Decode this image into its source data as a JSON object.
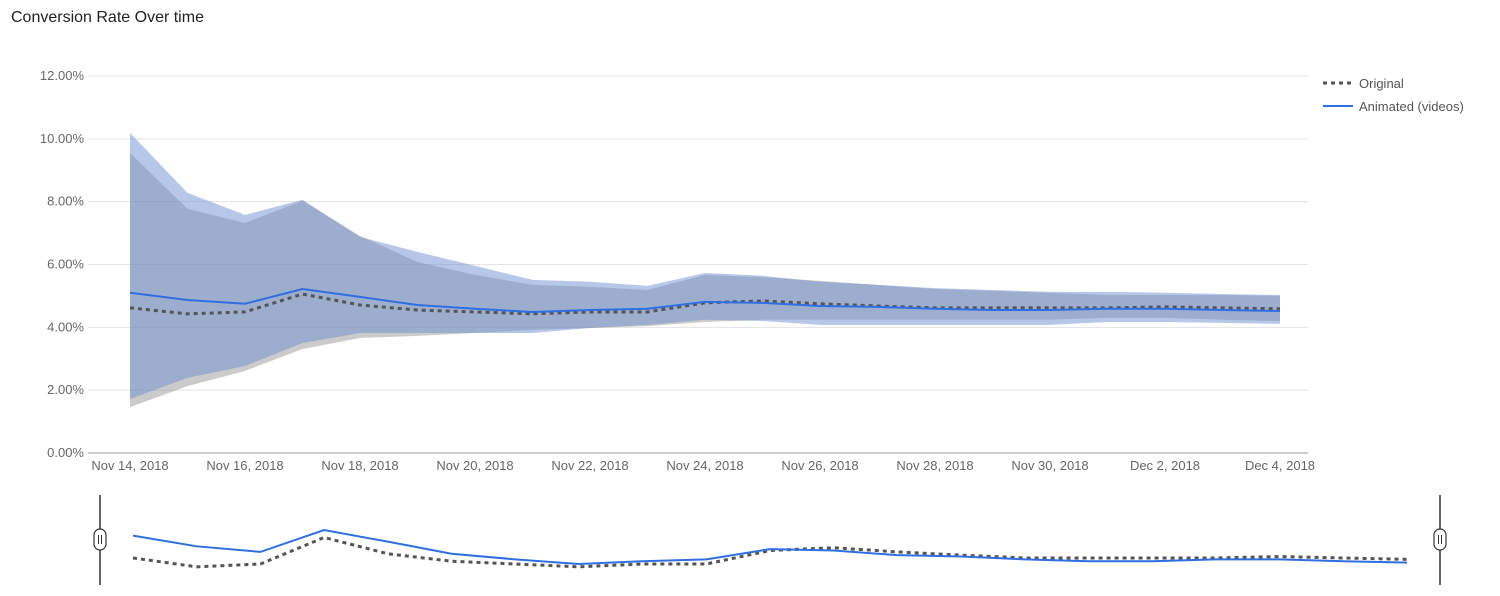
{
  "chart_data": {
    "type": "line",
    "title": "Conversion Rate Over time",
    "xlabel": "",
    "ylabel": "",
    "ylim": [
      0,
      12
    ],
    "y_ticks": [
      "0.00%",
      "2.00%",
      "4.00%",
      "6.00%",
      "8.00%",
      "10.00%",
      "12.00%"
    ],
    "x_tick_labels": [
      "Nov 14, 2018",
      "Nov 16, 2018",
      "Nov 18, 2018",
      "Nov 20, 2018",
      "Nov 22, 2018",
      "Nov 24, 2018",
      "Nov 26, 2018",
      "Nov 28, 2018",
      "Nov 30, 2018",
      "Dec 2, 2018",
      "Dec 4, 2018"
    ],
    "x": [
      "Nov 14",
      "Nov 15",
      "Nov 16",
      "Nov 17",
      "Nov 18",
      "Nov 19",
      "Nov 20",
      "Nov 21",
      "Nov 22",
      "Nov 23",
      "Nov 24",
      "Nov 25",
      "Nov 26",
      "Nov 27",
      "Nov 28",
      "Nov 29",
      "Nov 30",
      "Dec 1",
      "Dec 2",
      "Dec 3",
      "Dec 4"
    ],
    "grid": true,
    "legend_position": "top-right",
    "series": [
      {
        "name": "Original",
        "style": "dotted",
        "color": "#555555",
        "band_color": "#8c8c8c",
        "values": [
          4.62,
          4.43,
          4.49,
          5.06,
          4.71,
          4.55,
          4.49,
          4.43,
          4.49,
          4.49,
          4.78,
          4.84,
          4.75,
          4.68,
          4.62,
          4.62,
          4.62,
          4.62,
          4.65,
          4.62,
          4.59
        ],
        "upper": [
          9.55,
          7.77,
          7.32,
          8.03,
          6.91,
          6.08,
          5.67,
          5.35,
          5.29,
          5.19,
          5.67,
          5.6,
          5.48,
          5.35,
          5.22,
          5.16,
          5.1,
          5.03,
          5.03,
          5.03,
          5.0
        ],
        "lower": [
          1.46,
          2.13,
          2.61,
          3.31,
          3.66,
          3.73,
          3.82,
          3.92,
          3.98,
          4.04,
          4.17,
          4.24,
          4.24,
          4.24,
          4.24,
          4.24,
          4.24,
          4.3,
          4.3,
          4.24,
          4.2
        ]
      },
      {
        "name": "Animated (videos)",
        "style": "solid",
        "color": "#2f6fe0",
        "band_color": "#6f8fcf",
        "values": [
          5.1,
          4.87,
          4.75,
          5.22,
          4.97,
          4.71,
          4.59,
          4.49,
          4.55,
          4.59,
          4.81,
          4.78,
          4.68,
          4.65,
          4.59,
          4.55,
          4.55,
          4.59,
          4.59,
          4.55,
          4.52
        ],
        "upper": [
          10.19,
          8.28,
          7.58,
          8.06,
          6.88,
          6.4,
          5.96,
          5.51,
          5.45,
          5.32,
          5.73,
          5.64,
          5.45,
          5.35,
          5.25,
          5.19,
          5.13,
          5.13,
          5.1,
          5.06,
          5.03
        ],
        "lower": [
          1.72,
          2.39,
          2.77,
          3.5,
          3.82,
          3.82,
          3.82,
          3.82,
          3.98,
          4.08,
          4.24,
          4.2,
          4.08,
          4.08,
          4.08,
          4.08,
          4.08,
          4.17,
          4.17,
          4.14,
          4.11
        ]
      }
    ]
  }
}
